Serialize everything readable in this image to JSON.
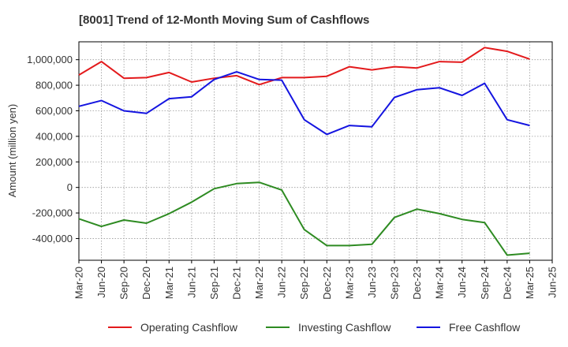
{
  "chart_data": {
    "type": "line",
    "title": "[8001]  Trend of 12-Month Moving Sum of Cashflows",
    "xlabel": "",
    "ylabel": "Amount (million yen)",
    "ylim": [
      -570000,
      1140000
    ],
    "yticks": [
      -400000,
      -200000,
      0,
      200000,
      400000,
      600000,
      800000,
      1000000
    ],
    "ytick_labels": [
      "-400,000",
      "-200,000",
      "0",
      "200,000",
      "400,000",
      "600,000",
      "800,000",
      "1,000,000"
    ],
    "x_labels": [
      "Mar-20",
      "Jun-20",
      "Sep-20",
      "Dec-20",
      "Mar-21",
      "Jun-21",
      "Sep-21",
      "Dec-21",
      "Mar-22",
      "Jun-22",
      "Sep-22",
      "Dec-22",
      "Mar-23",
      "Jun-23",
      "Sep-23",
      "Dec-23",
      "Mar-24",
      "Jun-24",
      "Sep-24",
      "Dec-24",
      "Mar-25",
      "Jun-25"
    ],
    "grid": true,
    "legend_position": "bottom",
    "series": [
      {
        "name": "Operating Cashflow",
        "color": "#e31a1c",
        "values": [
          880000,
          985000,
          855000,
          860000,
          900000,
          825000,
          855000,
          875000,
          805000,
          860000,
          860000,
          870000,
          945000,
          920000,
          945000,
          935000,
          985000,
          980000,
          1095000,
          1065000,
          1005000,
          null
        ]
      },
      {
        "name": "Investing Cashflow",
        "color": "#2e8b22",
        "values": [
          -245000,
          -305000,
          -255000,
          -280000,
          -205000,
          -115000,
          -10000,
          30000,
          40000,
          -20000,
          -330000,
          -455000,
          -455000,
          -445000,
          -235000,
          -170000,
          -205000,
          -250000,
          -275000,
          -530000,
          -515000,
          null
        ]
      },
      {
        "name": "Free Cashflow",
        "color": "#1414e0",
        "values": [
          635000,
          680000,
          600000,
          580000,
          695000,
          710000,
          845000,
          905000,
          845000,
          840000,
          530000,
          415000,
          485000,
          475000,
          705000,
          765000,
          780000,
          720000,
          815000,
          530000,
          485000,
          null
        ]
      }
    ]
  }
}
